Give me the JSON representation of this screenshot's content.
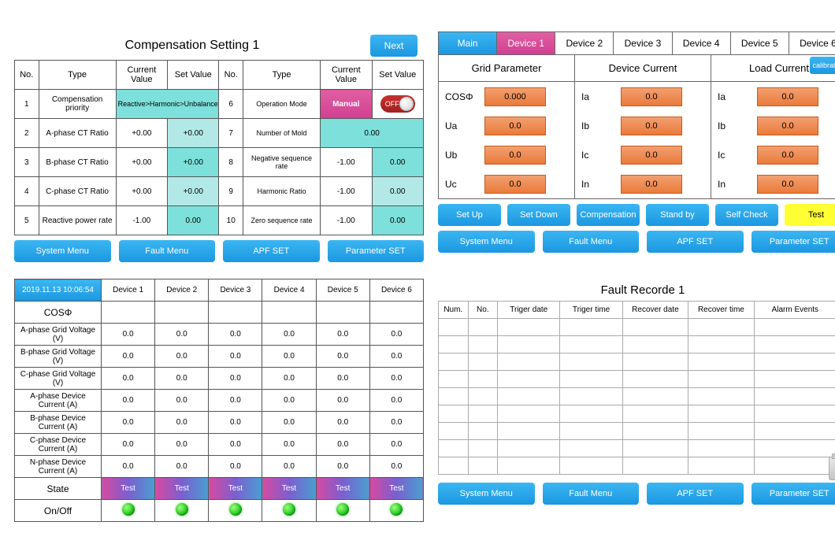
{
  "panel1": {
    "title": "Compensation Setting 1",
    "next": "Next",
    "headers": {
      "no": "No.",
      "type": "Type",
      "cv": "Current Value",
      "sv": "Set Value"
    },
    "left": [
      {
        "no": "1",
        "type": "Compensation priority",
        "cv": "Reactive>Harmonic>Unbalance",
        "sv": "",
        "cv_span": true,
        "cv_class": "cell-teal"
      },
      {
        "no": "2",
        "type": "A-phase CT Ratio",
        "cv": "+0.00",
        "sv": "+0.00",
        "sv_class": "cell-teal-dim"
      },
      {
        "no": "3",
        "type": "B-phase CT Ratio",
        "cv": "+0.00",
        "sv": "+0.00",
        "sv_class": "cell-teal"
      },
      {
        "no": "4",
        "type": "C-phase CT Ratio",
        "cv": "+0.00",
        "sv": "+0.00",
        "sv_class": "cell-teal-dim"
      },
      {
        "no": "5",
        "type": "Reactive power rate",
        "cv": "-1.00",
        "sv": "0.00",
        "sv_class": "cell-teal"
      }
    ],
    "right": [
      {
        "no": "6",
        "type": "Operation Mode",
        "cv": "Manual",
        "sv": "OFF",
        "cv_class": "cell-manual",
        "toggle": true
      },
      {
        "no": "7",
        "type": "Number of Mold",
        "cv": "0.00",
        "cv_span": true,
        "cv_class": "cell-teal"
      },
      {
        "no": "8",
        "type": "Negative sequence rate",
        "cv": "-1.00",
        "sv": "0.00",
        "sv_class": "cell-teal"
      },
      {
        "no": "9",
        "type": "Harmonic Ratio",
        "cv": "-1.00",
        "sv": "0.00",
        "sv_class": "cell-teal-dim"
      },
      {
        "no": "10",
        "type": "Zero sequence rate",
        "cv": "-1.00",
        "sv": "0.00",
        "sv_class": "cell-teal"
      }
    ],
    "buttons": [
      "System Menu",
      "Fault Menu",
      "APF SET",
      "Parameter SET"
    ]
  },
  "panel2": {
    "tabs": [
      "Main",
      "Device 1",
      "Device 2",
      "Device 3",
      "Device 4",
      "Device 5",
      "Device 6"
    ],
    "active_tab": 1,
    "headers": [
      "Grid Parameter",
      "Device Current",
      "Load Current"
    ],
    "calibration": "calibration",
    "cols": [
      [
        {
          "l": "COSΦ",
          "v": "0.000"
        },
        {
          "l": "Ua",
          "v": "0.0"
        },
        {
          "l": "Ub",
          "v": "0.0"
        },
        {
          "l": "Uc",
          "v": "0.0"
        }
      ],
      [
        {
          "l": "Ia",
          "v": "0.0"
        },
        {
          "l": "Ib",
          "v": "0.0"
        },
        {
          "l": "Ic",
          "v": "0.0"
        },
        {
          "l": "In",
          "v": "0.0"
        }
      ],
      [
        {
          "l": "Ia",
          "v": "0.0"
        },
        {
          "l": "Ib",
          "v": "0.0"
        },
        {
          "l": "Ic",
          "v": "0.0"
        },
        {
          "l": "In",
          "v": "0.0"
        }
      ]
    ],
    "actions": [
      "Set Up",
      "Set Down",
      "Compensation",
      "Stand by",
      "Self Check",
      "Test"
    ],
    "buttons": [
      "System Menu",
      "Fault Menu",
      "APF SET",
      "Parameter SET"
    ]
  },
  "panel3": {
    "timestamp": "2019.11.13 10:06:54",
    "devices": [
      "Device 1",
      "Device 2",
      "Device 3",
      "Device 4",
      "Device 5",
      "Device 6"
    ],
    "cos_label": "COSΦ",
    "rows": [
      {
        "label": "A-phase Grid Voltage (V)",
        "vals": [
          "0.0",
          "0.0",
          "0.0",
          "0.0",
          "0.0",
          "0.0"
        ]
      },
      {
        "label": "B-phase Grid Voltage (V)",
        "vals": [
          "0.0",
          "0.0",
          "0.0",
          "0.0",
          "0.0",
          "0.0"
        ]
      },
      {
        "label": "C-phase Grid Voltage (V)",
        "vals": [
          "0.0",
          "0.0",
          "0.0",
          "0.0",
          "0.0",
          "0.0"
        ]
      },
      {
        "label": "A-phase Device Current (A)",
        "vals": [
          "0.0",
          "0.0",
          "0.0",
          "0.0",
          "0.0",
          "0.0"
        ]
      },
      {
        "label": "B-phase Device Current (A)",
        "vals": [
          "0.0",
          "0.0",
          "0.0",
          "0.0",
          "0.0",
          "0.0"
        ]
      },
      {
        "label": "C-phase Device Current (A)",
        "vals": [
          "0.0",
          "0.0",
          "0.0",
          "0.0",
          "0.0",
          "0.0"
        ]
      },
      {
        "label": "N-phase Device Current (A)",
        "vals": [
          "0.0",
          "0.0",
          "0.0",
          "0.0",
          "0.0",
          "0.0"
        ]
      }
    ],
    "state_label": "State",
    "state_vals": [
      "Test",
      "Test",
      "Test",
      "Test",
      "Test",
      "Test"
    ],
    "onoff_label": "On/Off"
  },
  "panel4": {
    "title": "Fault Recorde 1",
    "columns": [
      "Num.",
      "No.",
      "Triger date",
      "Triger time",
      "Recover date",
      "Recover time",
      "Alarm Events"
    ],
    "empty_rows": 9,
    "buttons": [
      "System Menu",
      "Fault Menu",
      "APF SET",
      "Parameter SET"
    ]
  }
}
